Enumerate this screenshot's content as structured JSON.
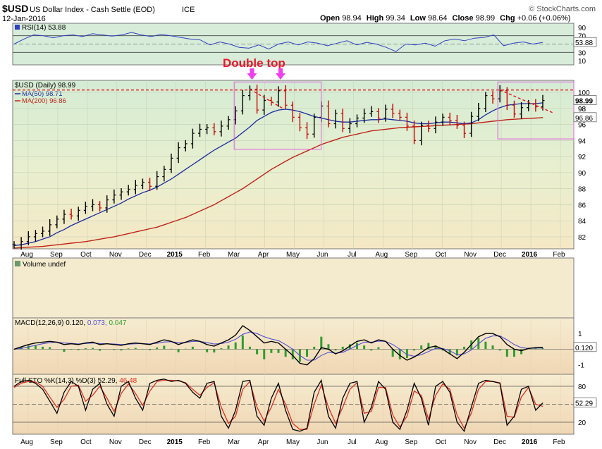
{
  "header": {
    "symbol": "$USD",
    "name": "US Dollar Index - Cash Settle (EOD)",
    "exchange": "ICE",
    "date": "12-Jan-2016",
    "source": "© StockCharts.com",
    "quote_open_label": "Open",
    "quote_open": "98.94",
    "quote_high_label": "High",
    "quote_high": "99.34",
    "quote_low_label": "Low",
    "quote_low": "98.64",
    "quote_close_label": "Close",
    "quote_close": "98.99",
    "quote_chg_label": "Chg",
    "quote_chg": "+0.06 (+0.06%)"
  },
  "annotation": {
    "text": "Double top",
    "color": "#e8182b",
    "arrow_color": "#ee3fee",
    "box_color": "#e060e0"
  },
  "colors": {
    "price_bars_up": "#000000",
    "price_bars_down": "#cc0000",
    "ma50": "#1a2aa0",
    "ma200": "#c0221a",
    "resistance": "#e01818",
    "rsi": "#3040c0",
    "macd": "#000000",
    "macd_signal": "#5050d0",
    "macd_hist": "#2e9e2e",
    "sto_k": "#000000",
    "sto_d": "#e03020"
  },
  "chart_data": [
    {
      "type": "line",
      "panel": "RSI",
      "legend": "RSI(14) 53.88",
      "current_value_label": "53.88",
      "y_ticks": [
        10,
        30,
        50,
        70,
        90
      ],
      "ylim": [
        0,
        100
      ],
      "overbought": 70,
      "oversold": 30,
      "values": [
        50,
        62,
        72,
        70,
        65,
        70,
        72,
        68,
        75,
        72,
        69,
        72,
        78,
        72,
        68,
        73,
        70,
        66,
        62,
        60,
        48,
        55,
        50,
        42,
        40,
        48,
        38,
        50,
        55,
        48,
        55,
        52,
        46,
        52,
        58,
        48,
        54,
        50,
        42,
        32,
        50,
        48,
        52,
        45,
        58,
        62,
        58,
        64,
        66,
        72,
        46,
        52,
        55,
        50,
        54
      ]
    },
    {
      "type": "candlestick",
      "panel": "Price",
      "legend": "$USD (Daily) 98.99",
      "legend_ma50": "MA(50) 98.71",
      "legend_ma200": "MA(200) 96.86",
      "current_value_label": "98.99",
      "ma200_label": "96.86",
      "secondary_label": "98",
      "y_ticks": [
        82,
        84,
        86,
        88,
        90,
        92,
        94,
        96,
        98,
        100
      ],
      "ylim": [
        80.5,
        101.5
      ],
      "x_tick_labels": [
        "Aug",
        "Sep",
        "Oct",
        "Nov",
        "Dec",
        "2015",
        "Feb",
        "Mar",
        "Apr",
        "May",
        "Jun",
        "Jul",
        "Aug",
        "Sep",
        "Oct",
        "Nov",
        "Dec",
        "2016",
        "Feb"
      ],
      "x_tick_bold": [
        "2015",
        "2016"
      ],
      "resistance_level": 100.3,
      "close": [
        81.0,
        81.4,
        82.0,
        82.4,
        82.7,
        83.5,
        84.2,
        84.8,
        84.6,
        85.3,
        85.8,
        86.0,
        85.6,
        86.6,
        87.2,
        87.6,
        87.9,
        88.4,
        88.8,
        88.3,
        89.5,
        90.4,
        91.8,
        93.1,
        93.6,
        94.9,
        95.4,
        95.6,
        95.1,
        95.8,
        96.6,
        97.7,
        99.6,
        100.4,
        97.8,
        99.0,
        98.8,
        100.2,
        98.4,
        96.9,
        95.6,
        94.8,
        96.9,
        98.3,
        96.1,
        97.4,
        95.5,
        96.1,
        96.8,
        97.4,
        97.6,
        96.8,
        97.9,
        97.4,
        96.9,
        95.8,
        94.0,
        95.9,
        95.5,
        96.3,
        96.9,
        96.5,
        95.9,
        94.9,
        97.0,
        98.0,
        99.6,
        99.2,
        100.2,
        98.4,
        97.3,
        98.1,
        98.6,
        98.2,
        98.99
      ],
      "ma50": [
        80.9,
        81.0,
        81.2,
        81.4,
        81.7,
        82.0,
        82.5,
        82.9,
        83.4,
        83.8,
        84.2,
        84.6,
        85.0,
        85.4,
        85.8,
        86.2,
        86.7,
        87.1,
        87.5,
        87.8,
        88.2,
        88.7,
        89.2,
        89.8,
        90.4,
        91.0,
        91.6,
        92.2,
        92.8,
        93.3,
        93.8,
        94.3,
        95.0,
        95.7,
        96.5,
        97.0,
        97.5,
        97.8,
        97.9,
        97.8,
        97.6,
        97.3,
        97.0,
        96.8,
        96.6,
        96.4,
        96.3,
        96.3,
        96.4,
        96.5,
        96.6,
        96.6,
        96.7,
        96.6,
        96.5,
        96.4,
        96.2,
        96.1,
        96.1,
        96.2,
        96.3,
        96.3,
        96.2,
        96.1,
        96.2,
        96.6,
        97.2,
        97.7,
        98.1,
        98.4,
        98.5,
        98.6,
        98.6,
        98.6,
        98.7
      ],
      "ma200": [
        80.6,
        80.65,
        80.7,
        80.75,
        80.8,
        80.9,
        81.0,
        81.1,
        81.2,
        81.3,
        81.4,
        81.55,
        81.7,
        81.85,
        82.0,
        82.2,
        82.4,
        82.6,
        82.8,
        83.0,
        83.2,
        83.5,
        83.8,
        84.1,
        84.4,
        84.8,
        85.2,
        85.6,
        86.0,
        86.5,
        87.0,
        87.5,
        88.0,
        88.6,
        89.2,
        89.8,
        90.4,
        90.9,
        91.4,
        91.9,
        92.3,
        92.7,
        93.1,
        93.5,
        93.8,
        94.1,
        94.4,
        94.6,
        94.8,
        95.0,
        95.2,
        95.3,
        95.4,
        95.5,
        95.6,
        95.65,
        95.7,
        95.75,
        95.8,
        95.85,
        95.9,
        95.95,
        96.0,
        96.05,
        96.1,
        96.2,
        96.3,
        96.4,
        96.5,
        96.6,
        96.65,
        96.7,
        96.75,
        96.8,
        96.86
      ]
    },
    {
      "type": "bar",
      "panel": "Volume",
      "legend": "Volume undef",
      "values": []
    },
    {
      "type": "line",
      "panel": "MACD",
      "legend_name": "MACD(12,26,9)",
      "legend_macd": "0.120,",
      "legend_signal": "0.073,",
      "legend_hist": "0.047",
      "current_value_label": "0.120",
      "y_ticks": [
        1,
        -1
      ],
      "ylim": [
        -1.6,
        2.0
      ],
      "macd": [
        0.0,
        0.15,
        0.3,
        0.4,
        0.45,
        0.5,
        0.45,
        0.3,
        0.35,
        0.3,
        0.4,
        0.45,
        0.3,
        0.35,
        0.3,
        0.25,
        0.35,
        0.4,
        0.35,
        0.3,
        0.45,
        0.6,
        0.5,
        0.3,
        0.45,
        0.6,
        0.5,
        0.3,
        0.2,
        0.4,
        0.6,
        0.9,
        1.5,
        1.2,
        0.8,
        0.4,
        0.5,
        0.4,
        0.0,
        -0.4,
        -0.9,
        -1.0,
        -0.6,
        0.1,
        0.0,
        -0.3,
        -0.1,
        0.2,
        0.5,
        0.6,
        0.4,
        0.6,
        0.5,
        0.0,
        -0.4,
        -0.7,
        -0.5,
        -0.2,
        0.1,
        0.2,
        0.0,
        -0.3,
        -0.6,
        -0.2,
        0.3,
        0.8,
        1.0,
        1.0,
        0.8,
        0.3,
        0.0,
        -0.1,
        0.05,
        0.1,
        0.12
      ],
      "signal": [
        0.0,
        0.05,
        0.15,
        0.25,
        0.35,
        0.42,
        0.45,
        0.4,
        0.37,
        0.34,
        0.36,
        0.4,
        0.36,
        0.35,
        0.33,
        0.3,
        0.32,
        0.35,
        0.36,
        0.34,
        0.38,
        0.46,
        0.48,
        0.42,
        0.43,
        0.5,
        0.5,
        0.42,
        0.33,
        0.36,
        0.45,
        0.63,
        0.95,
        1.1,
        1.0,
        0.8,
        0.65,
        0.55,
        0.3,
        0.0,
        -0.4,
        -0.7,
        -0.7,
        -0.4,
        -0.2,
        -0.25,
        -0.2,
        0.0,
        0.25,
        0.45,
        0.45,
        0.52,
        0.5,
        0.3,
        0.0,
        -0.35,
        -0.45,
        -0.35,
        -0.15,
        0.05,
        0.05,
        -0.1,
        -0.35,
        -0.3,
        -0.05,
        0.35,
        0.7,
        0.85,
        0.85,
        0.6,
        0.3,
        0.1,
        0.05,
        0.07,
        0.073
      ]
    },
    {
      "type": "line",
      "panel": "Full STO",
      "legend_name": "Full STO %K(14,3) %D(3)",
      "legend_k": "52.29,",
      "legend_d": "46.48",
      "current_value_label": "52.29",
      "y_ticks": [
        20,
        50,
        80
      ],
      "ylim": [
        0,
        100
      ],
      "k": [
        80,
        88,
        90,
        85,
        75,
        55,
        35,
        70,
        88,
        80,
        40,
        75,
        85,
        50,
        30,
        80,
        88,
        60,
        40,
        85,
        90,
        92,
        88,
        90,
        85,
        70,
        60,
        85,
        88,
        30,
        10,
        40,
        88,
        90,
        30,
        15,
        60,
        85,
        40,
        8,
        5,
        10,
        70,
        90,
        30,
        10,
        60,
        85,
        88,
        20,
        45,
        88,
        75,
        20,
        8,
        40,
        85,
        60,
        15,
        80,
        88,
        70,
        20,
        5,
        45,
        85,
        90,
        88,
        85,
        15,
        30,
        75,
        80,
        40,
        52.29
      ],
      "d": [
        78,
        85,
        88,
        87,
        80,
        62,
        45,
        58,
        80,
        82,
        55,
        65,
        80,
        60,
        38,
        68,
        84,
        68,
        48,
        72,
        88,
        90,
        90,
        89,
        86,
        75,
        65,
        78,
        86,
        45,
        18,
        30,
        75,
        88,
        45,
        22,
        45,
        75,
        50,
        18,
        8,
        8,
        50,
        82,
        45,
        18,
        45,
        75,
        86,
        35,
        38,
        78,
        78,
        32,
        12,
        30,
        72,
        65,
        25,
        65,
        84,
        75,
        32,
        10,
        35,
        75,
        88,
        88,
        86,
        30,
        28,
        62,
        78,
        50,
        46.48
      ]
    }
  ]
}
